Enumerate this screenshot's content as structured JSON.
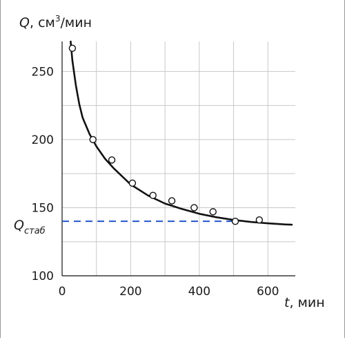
{
  "chart_data": {
    "type": "scatter",
    "ylabel": {
      "var": "Q",
      "sep": ", ",
      "unit_base": "см",
      "unit_sup": "3",
      "unit_tail": "/мин"
    },
    "xlabel": {
      "var": "t",
      "sep": ", ",
      "unit": "мин"
    },
    "xlim": [
      0,
      680
    ],
    "ylim": [
      100,
      272
    ],
    "x_ticks": [
      0,
      200,
      400,
      600
    ],
    "y_ticks": [
      100,
      150,
      200,
      250
    ],
    "grid": true,
    "series": [
      {
        "style": "markers",
        "x": [
          30,
          90,
          145,
          205,
          265,
          320,
          385,
          440,
          505,
          575
        ],
        "y": [
          267,
          200,
          185,
          168,
          159,
          155,
          150,
          147,
          140,
          141
        ]
      },
      {
        "style": "fitted-curve",
        "x": [
          25,
          30,
          40,
          50,
          60,
          80,
          100,
          125,
          150,
          200,
          250,
          300,
          350,
          400,
          450,
          500,
          550,
          600,
          650,
          670
        ],
        "y": [
          272,
          258,
          240,
          226,
          216,
          204,
          195,
          186,
          179,
          167,
          159,
          153,
          149,
          145.5,
          143,
          141,
          139.5,
          138.5,
          137.7,
          137.5
        ]
      }
    ],
    "reference_line": {
      "label_base": "Q",
      "label_sub": "стаб",
      "y": 140,
      "x_end": 505,
      "color": "#2255cc"
    },
    "colors": {
      "curve": "#111111",
      "grid": "#c8c8c8",
      "axis": "#111111",
      "reference": "#2255cc"
    }
  }
}
